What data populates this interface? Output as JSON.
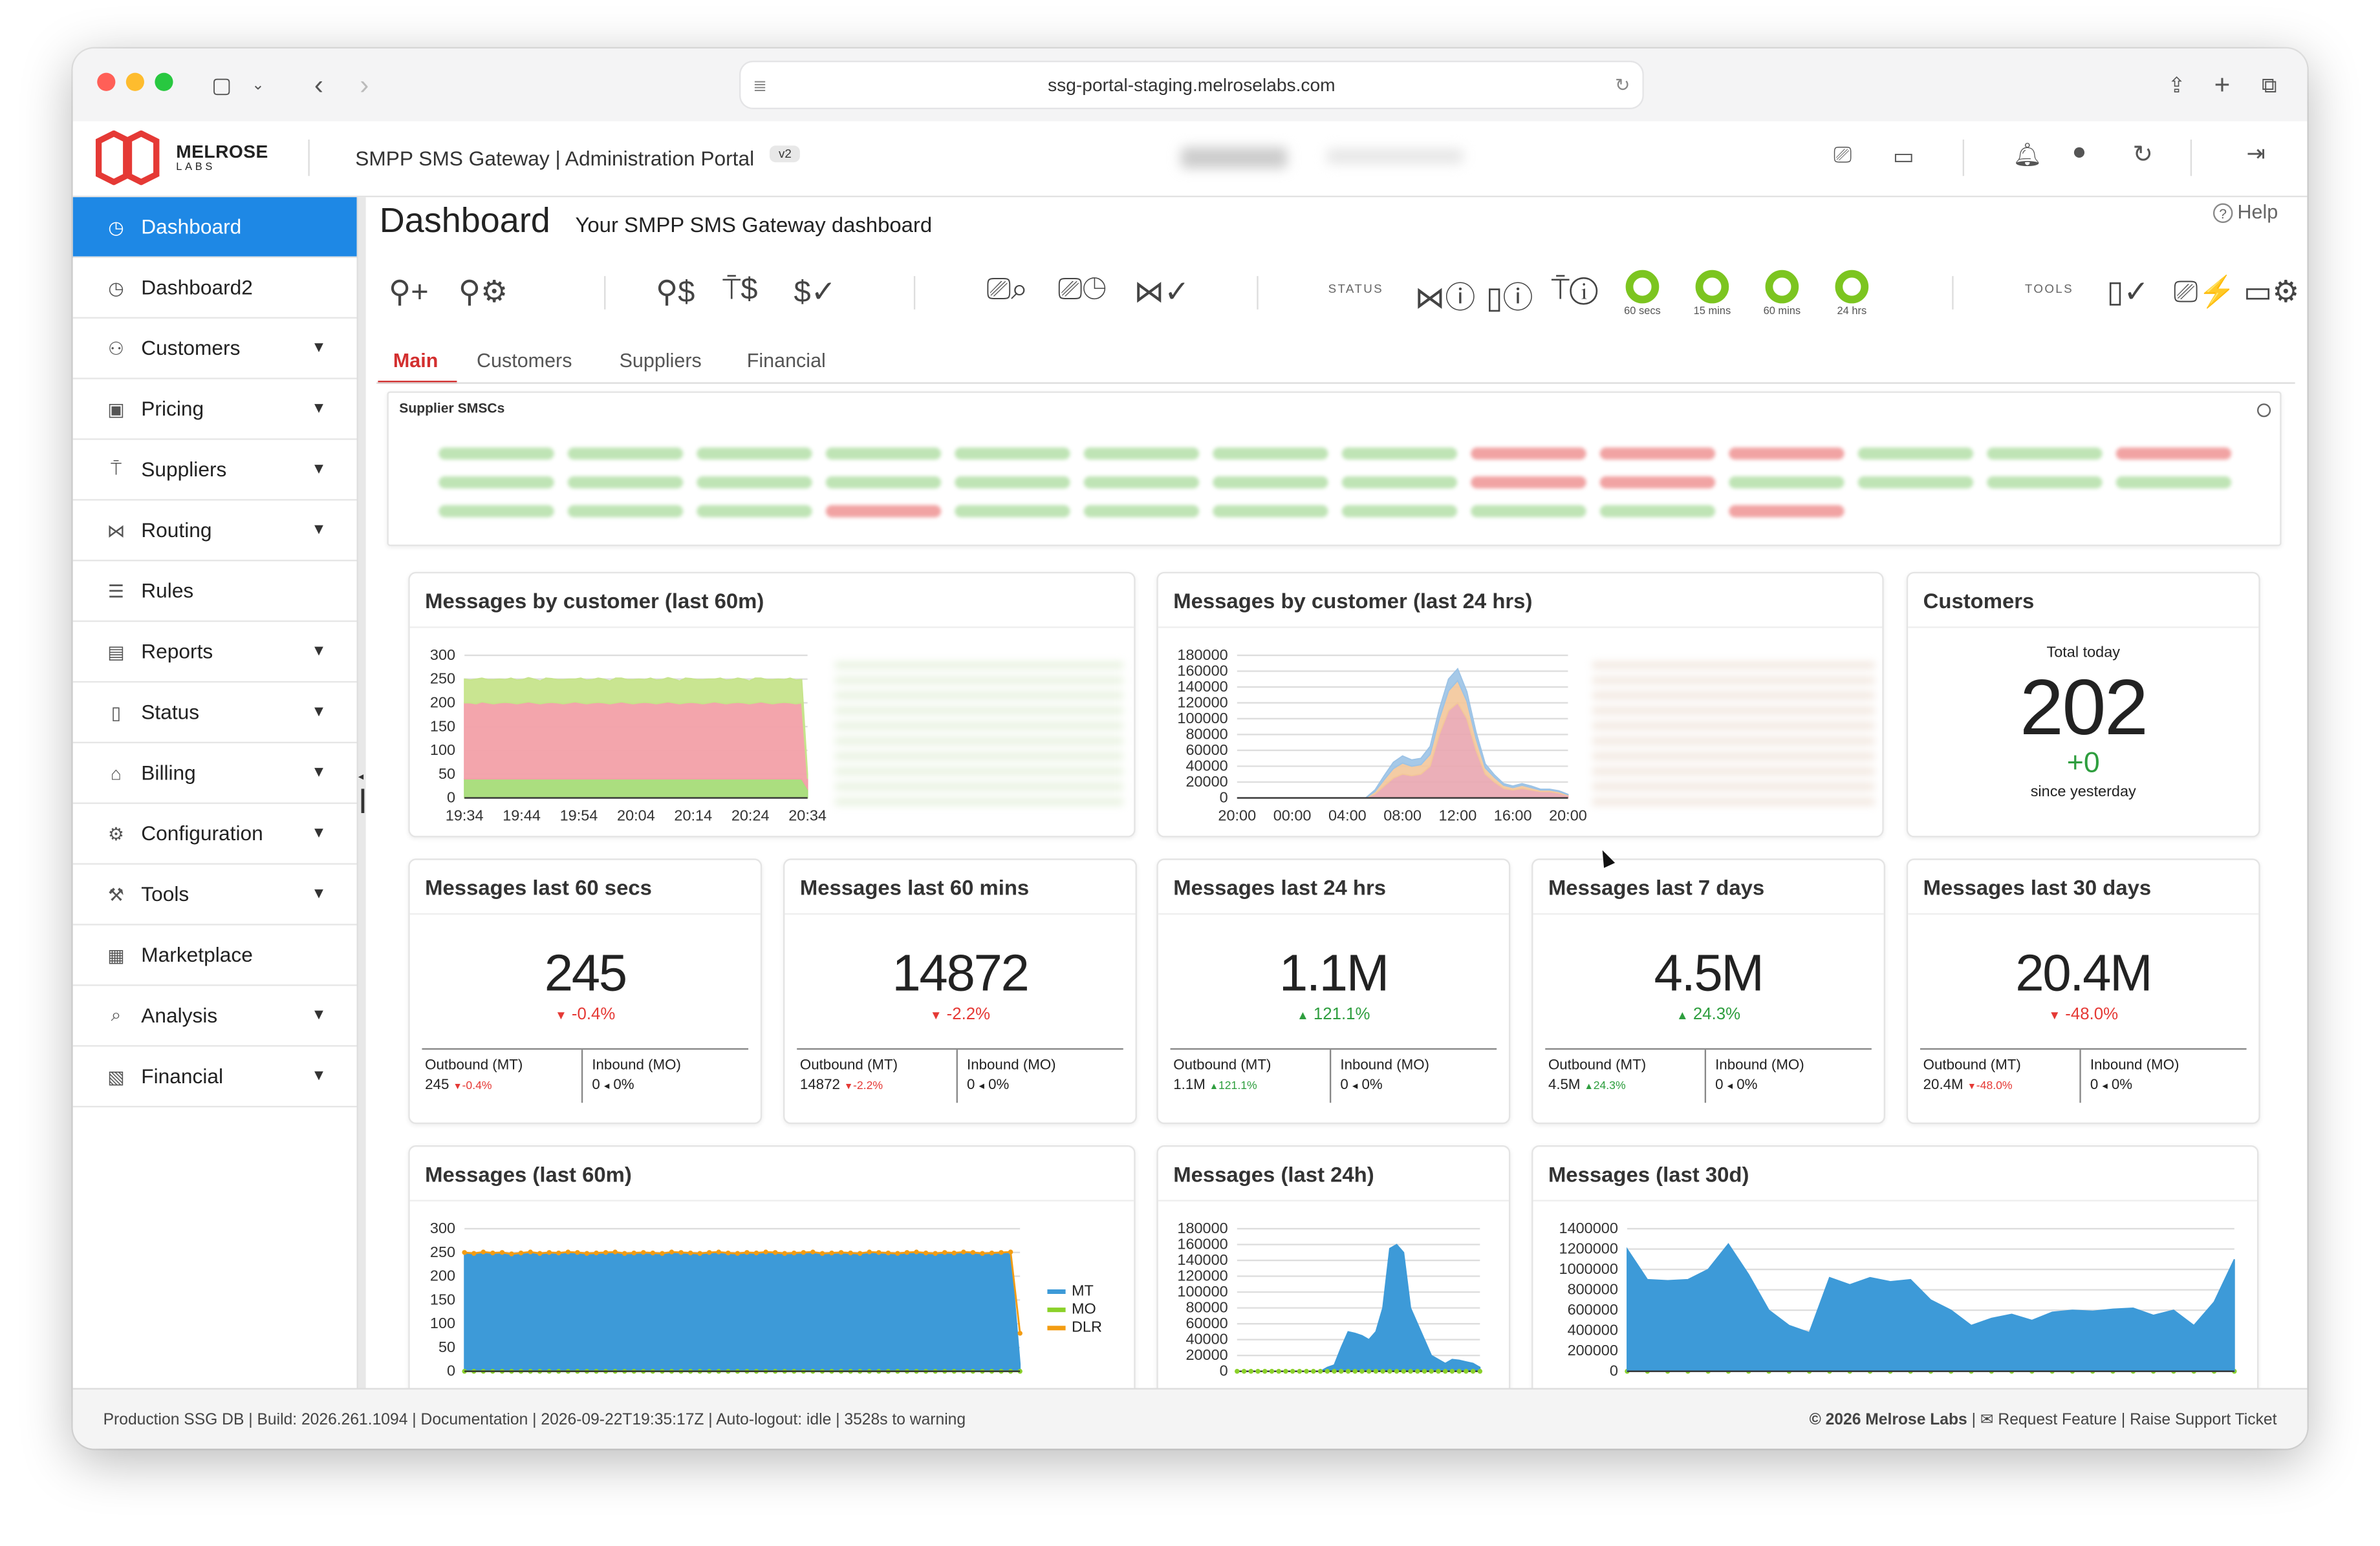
{
  "browser": {
    "url": "ssg-portal-staging.melroselabs.com"
  },
  "brand": {
    "logo_text": "MELROSE",
    "logo_sub": "LABS",
    "app_title": "SMPP SMS Gateway | Administration Portal",
    "version_badge": "v2"
  },
  "sidebar": {
    "items": [
      {
        "label": "Dashboard",
        "icon": "dashboard-icon",
        "active": true
      },
      {
        "label": "Dashboard2",
        "icon": "dashboard-icon"
      },
      {
        "label": "Customers",
        "icon": "users-icon",
        "caret": true
      },
      {
        "label": "Pricing",
        "icon": "money-icon",
        "caret": true
      },
      {
        "label": "Suppliers",
        "icon": "antenna-icon",
        "caret": true
      },
      {
        "label": "Routing",
        "icon": "routing-icon",
        "caret": true
      },
      {
        "label": "Rules",
        "icon": "list-icon"
      },
      {
        "label": "Reports",
        "icon": "report-icon",
        "caret": true
      },
      {
        "label": "Status",
        "icon": "status-icon",
        "caret": true
      },
      {
        "label": "Billing",
        "icon": "billing-icon",
        "caret": true
      },
      {
        "label": "Configuration",
        "icon": "config-icon",
        "caret": true
      },
      {
        "label": "Tools",
        "icon": "wrench-icon",
        "caret": true
      },
      {
        "label": "Marketplace",
        "icon": "marketplace-icon"
      },
      {
        "label": "Analysis",
        "icon": "analysis-icon",
        "caret": true
      },
      {
        "label": "Financial",
        "icon": "financial-icon",
        "caret": true
      }
    ]
  },
  "page": {
    "title": "Dashboard",
    "subtitle": "Your SMPP SMS Gateway dashboard",
    "help": "Help"
  },
  "toolbar": {
    "status_label": "STATUS",
    "tools_label": "TOOLS",
    "rings": [
      "60 secs",
      "15 mins",
      "60 mins",
      "24 hrs"
    ]
  },
  "tabs": [
    {
      "label": "Main",
      "active": true
    },
    {
      "label": "Customers"
    },
    {
      "label": "Suppliers"
    },
    {
      "label": "Financial"
    }
  ],
  "supplier_panel": {
    "title": "Supplier SMSCs"
  },
  "cards": {
    "mbc60": {
      "title": "Messages by customer (last 60m)"
    },
    "mbc24": {
      "title": "Messages by customer (last 24 hrs)"
    },
    "customers": {
      "title": "Customers",
      "caption": "Total today",
      "value": "202",
      "delta": "+0",
      "delta_caption": "since yesterday"
    },
    "m60s": {
      "title": "Messages last 60 secs",
      "value": "245",
      "delta": "-0.4%",
      "trend": "down",
      "out_label": "Outbound (MT)",
      "out_value": "245",
      "out_delta": "-0.4%",
      "in_label": "Inbound (MO)",
      "in_value": "0",
      "in_delta": "0%"
    },
    "m60m": {
      "title": "Messages last 60 mins",
      "value": "14872",
      "delta": "-2.2%",
      "trend": "down",
      "out_label": "Outbound (MT)",
      "out_value": "14872",
      "out_delta": "-2.2%",
      "in_label": "Inbound (MO)",
      "in_value": "0",
      "in_delta": "0%"
    },
    "m24h": {
      "title": "Messages last 24 hrs",
      "value": "1.1M",
      "delta": "121.1%",
      "trend": "up",
      "out_label": "Outbound (MT)",
      "out_value": "1.1M",
      "out_delta": "121.1%",
      "in_label": "Inbound (MO)",
      "in_value": "0",
      "in_delta": "0%"
    },
    "m7d": {
      "title": "Messages last 7 days",
      "value": "4.5M",
      "delta": "24.3%",
      "trend": "up",
      "out_label": "Outbound (MT)",
      "out_value": "4.5M",
      "out_delta": "24.3%",
      "in_label": "Inbound (MO)",
      "in_value": "0",
      "in_delta": "0%"
    },
    "m30d": {
      "title": "Messages last 30 days",
      "value": "20.4M",
      "delta": "-48.0%",
      "trend": "down",
      "out_label": "Outbound (MT)",
      "out_value": "20.4M",
      "out_delta": "-48.0%",
      "in_label": "Inbound (MO)",
      "in_value": "0",
      "in_delta": "0%"
    },
    "ml60": {
      "title": "Messages (last 60m)"
    },
    "ml24": {
      "title": "Messages (last 24h)"
    },
    "ml30": {
      "title": "Messages (last 30d)"
    }
  },
  "colors": {
    "accent": "#1e88e5",
    "mt": "#3d9ad8",
    "mo": "#8bd12a",
    "dlr": "#f39c12",
    "ok": "#7cc520",
    "fail": "#e53935"
  },
  "footer": {
    "left": "Production SSG DB | Build: 2026.261.1094 | Documentation | 2026-09-22T19:35:17Z | Auto-logout: idle | 3528s to warning",
    "copyright": "© 2026 Melrose Labs",
    "request": "Request Feature",
    "ticket": "Raise Support Ticket"
  },
  "chart_data": [
    {
      "id": "mbc60",
      "type": "area",
      "title": "Messages by customer (last 60m)",
      "x_ticks": [
        "19:34",
        "19:44",
        "19:54",
        "20:04",
        "20:14",
        "20:24",
        "20:34"
      ],
      "y_ticks": [
        0,
        50,
        100,
        150,
        200,
        250,
        300
      ],
      "ylim": [
        0,
        300
      ],
      "series": [
        {
          "values": [
            40,
            40,
            40,
            40,
            40,
            40,
            40,
            40,
            40,
            40,
            40,
            40,
            40,
            40,
            40,
            40,
            40,
            40,
            40,
            40,
            40,
            40,
            40,
            40,
            40,
            40,
            40,
            40,
            40,
            40,
            40,
            40,
            40,
            40,
            40,
            40,
            40,
            40,
            40,
            40,
            40,
            40,
            40,
            40,
            40,
            40,
            40,
            40,
            40,
            40,
            40,
            40,
            40,
            40,
            40,
            40,
            40,
            40,
            40,
            20
          ]
        },
        {
          "values": [
            160,
            160,
            158,
            162,
            160,
            158,
            160,
            161,
            160,
            158,
            160,
            162,
            160,
            158,
            160,
            161,
            160,
            158,
            160,
            162,
            160,
            158,
            160,
            161,
            160,
            158,
            160,
            162,
            160,
            158,
            160,
            161,
            160,
            158,
            160,
            162,
            160,
            158,
            160,
            161,
            160,
            158,
            160,
            162,
            160,
            158,
            160,
            161,
            160,
            158,
            160,
            162,
            160,
            158,
            160,
            161,
            160,
            158,
            160,
            20
          ]
        },
        {
          "values": [
            50,
            48,
            52,
            50,
            49,
            51,
            50,
            48,
            52,
            50,
            49,
            51,
            50,
            48,
            52,
            50,
            49,
            51,
            50,
            48,
            52,
            50,
            49,
            51,
            50,
            48,
            52,
            50,
            49,
            51,
            50,
            48,
            52,
            50,
            49,
            51,
            50,
            48,
            52,
            50,
            49,
            51,
            50,
            48,
            52,
            50,
            49,
            51,
            50,
            48,
            52,
            50,
            49,
            51,
            50,
            48,
            52,
            50,
            49,
            10
          ]
        }
      ]
    },
    {
      "id": "mbc24",
      "type": "area",
      "title": "Messages by customer (last 24 hrs)",
      "x_ticks": [
        "20:00",
        "00:00",
        "04:00",
        "08:00",
        "12:00",
        "16:00",
        "20:00"
      ],
      "y_ticks": [
        0,
        20000,
        40000,
        60000,
        80000,
        100000,
        120000,
        140000,
        160000,
        180000
      ],
      "ylim": [
        0,
        180000
      ],
      "series": [
        {
          "values": [
            0,
            0,
            0,
            0,
            0,
            0,
            0,
            0,
            0,
            0,
            0,
            0,
            0,
            0,
            0,
            5000,
            15000,
            25000,
            30000,
            28000,
            30000,
            40000,
            80000,
            110000,
            120000,
            100000,
            60000,
            30000,
            20000,
            12000,
            10000,
            12000,
            10000,
            8000,
            8000,
            6000,
            3000
          ]
        },
        {
          "values": [
            0,
            0,
            0,
            0,
            0,
            0,
            0,
            0,
            0,
            0,
            0,
            0,
            0,
            0,
            0,
            3000,
            8000,
            12000,
            14000,
            12000,
            12000,
            15000,
            20000,
            25000,
            28000,
            22000,
            15000,
            8000,
            6000,
            4000,
            3000,
            4000,
            3000,
            2000,
            2000,
            2000,
            1000
          ]
        },
        {
          "values": [
            0,
            0,
            0,
            0,
            0,
            0,
            0,
            0,
            0,
            0,
            0,
            0,
            0,
            0,
            0,
            2000,
            5000,
            8000,
            9000,
            8000,
            8000,
            10000,
            12000,
            15000,
            15000,
            12000,
            8000,
            5000,
            3000,
            2000,
            2000,
            2000,
            2000,
            1000,
            1000,
            1000,
            500
          ]
        }
      ]
    },
    {
      "id": "ml60",
      "type": "area",
      "title": "Messages (last 60m)",
      "x_ticks": [],
      "y_ticks": [
        0,
        50,
        100,
        150,
        200,
        250,
        300
      ],
      "ylim": [
        0,
        300
      ],
      "series": [
        {
          "name": "MT",
          "values": [
            248,
            246,
            249,
            247,
            248,
            245,
            247,
            249,
            246,
            248,
            247,
            249,
            248,
            246,
            247,
            248,
            249,
            246,
            247,
            248,
            247,
            246,
            249,
            248,
            247,
            246,
            248,
            249,
            247,
            246,
            248,
            247,
            249,
            248,
            246,
            247,
            248,
            249,
            246,
            247,
            248,
            247,
            246,
            249,
            248,
            247,
            246,
            248,
            249,
            247,
            246,
            248,
            247,
            249,
            248,
            246,
            247,
            248,
            249,
            15
          ]
        },
        {
          "name": "MO",
          "values": [
            0,
            0,
            0,
            0,
            0,
            0,
            0,
            0,
            0,
            0,
            0,
            0,
            0,
            0,
            0,
            0,
            0,
            0,
            0,
            0,
            0,
            0,
            0,
            0,
            0,
            0,
            0,
            0,
            0,
            0,
            0,
            0,
            0,
            0,
            0,
            0,
            0,
            0,
            0,
            0,
            0,
            0,
            0,
            0,
            0,
            0,
            0,
            0,
            0,
            0,
            0,
            0,
            0,
            0,
            0,
            0,
            0,
            0,
            0,
            0
          ]
        },
        {
          "name": "DLR",
          "values": [
            250,
            248,
            251,
            249,
            250,
            247,
            249,
            251,
            248,
            250,
            249,
            251,
            250,
            248,
            249,
            250,
            251,
            248,
            249,
            250,
            249,
            248,
            251,
            250,
            249,
            248,
            250,
            251,
            249,
            248,
            250,
            249,
            251,
            250,
            248,
            249,
            250,
            251,
            248,
            249,
            250,
            249,
            248,
            251,
            250,
            249,
            248,
            250,
            251,
            249,
            248,
            250,
            249,
            251,
            250,
            248,
            249,
            250,
            251,
            80
          ]
        }
      ]
    },
    {
      "id": "ml24",
      "type": "area",
      "title": "Messages (last 24h)",
      "x_ticks": [],
      "y_ticks": [
        0,
        20000,
        40000,
        60000,
        80000,
        100000,
        120000,
        140000,
        160000,
        180000
      ],
      "ylim": [
        0,
        180000
      ],
      "series": [
        {
          "name": "MT",
          "values": [
            0,
            0,
            0,
            0,
            0,
            0,
            0,
            0,
            0,
            0,
            0,
            0,
            0,
            5000,
            8000,
            30000,
            50000,
            48000,
            45000,
            40000,
            50000,
            80000,
            155000,
            160000,
            150000,
            80000,
            60000,
            40000,
            20000,
            15000,
            10000,
            15000,
            14000,
            12000,
            10000,
            5000
          ]
        }
      ]
    },
    {
      "id": "ml30",
      "type": "area",
      "title": "Messages (last 30d)",
      "x_ticks": [],
      "y_ticks": [
        0,
        200000,
        400000,
        600000,
        800000,
        1000000,
        1200000,
        1400000
      ],
      "ylim": [
        0,
        1400000
      ],
      "series": [
        {
          "name": "MT",
          "values": [
            1200000,
            900000,
            890000,
            900000,
            1000000,
            1250000,
            950000,
            600000,
            450000,
            380000,
            920000,
            850000,
            920000,
            880000,
            900000,
            700000,
            600000,
            450000,
            520000,
            560000,
            500000,
            580000,
            600000,
            590000,
            610000,
            620000,
            550000,
            600000,
            450000,
            680000,
            1100000
          ]
        }
      ]
    }
  ]
}
